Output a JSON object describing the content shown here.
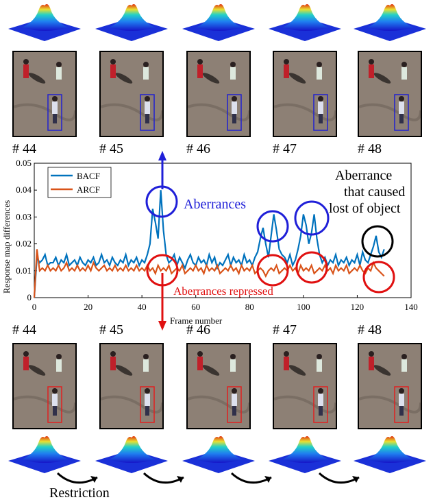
{
  "frames_top": [
    {
      "label": "# 44"
    },
    {
      "label": "# 45"
    },
    {
      "label": "# 46"
    },
    {
      "label": "# 47"
    },
    {
      "label": "# 48"
    }
  ],
  "frames_bottom": [
    {
      "label": "# 44"
    },
    {
      "label": "# 45"
    },
    {
      "label": "# 46"
    },
    {
      "label": "# 47"
    },
    {
      "label": "# 48"
    }
  ],
  "annotations": {
    "aberrances": "Aberrances",
    "aberrances_repressed": "Aberrances repressed",
    "aberrance_lost_1": "Aberrance",
    "aberrance_lost_2": "that caused",
    "aberrance_lost_3": "lost of object",
    "restriction": "Restriction"
  },
  "colors": {
    "bacf": "#0072bd",
    "arcf": "#d95319",
    "blue_annot": "#1f1fd8",
    "red_annot": "#e01010",
    "box_top": "#2020d0",
    "box_bottom": "#e02020"
  },
  "chart_data": {
    "type": "line",
    "title": "",
    "xlabel": "Frame number",
    "ylabel": "Response map differences",
    "xlim": [
      0,
      140
    ],
    "ylim": [
      0,
      0.05
    ],
    "xticks": [
      0,
      20,
      40,
      60,
      80,
      100,
      120,
      140
    ],
    "yticks": [
      0,
      0.01,
      0.02,
      0.03,
      0.04,
      0.05
    ],
    "legend": "top-left",
    "series": [
      {
        "name": "BACF",
        "x": [
          0,
          1,
          2,
          3,
          4,
          5,
          6,
          7,
          8,
          9,
          10,
          11,
          12,
          13,
          14,
          15,
          16,
          17,
          18,
          19,
          20,
          21,
          22,
          23,
          24,
          25,
          26,
          27,
          28,
          29,
          30,
          31,
          32,
          33,
          34,
          35,
          36,
          37,
          38,
          39,
          40,
          41,
          42,
          43,
          44,
          45,
          46,
          47,
          48,
          49,
          50,
          51,
          52,
          53,
          54,
          55,
          56,
          57,
          58,
          59,
          60,
          61,
          62,
          63,
          64,
          65,
          66,
          67,
          68,
          69,
          70,
          71,
          72,
          73,
          74,
          75,
          76,
          77,
          78,
          79,
          80,
          81,
          82,
          83,
          84,
          85,
          86,
          87,
          88,
          89,
          90,
          91,
          92,
          93,
          94,
          95,
          96,
          97,
          98,
          99,
          100,
          101,
          102,
          103,
          104,
          105,
          106,
          107,
          108,
          109,
          110,
          111,
          112,
          113,
          114,
          115,
          116,
          117,
          118,
          119,
          120,
          121,
          122,
          123,
          124,
          125,
          126,
          127,
          128,
          129,
          130
        ],
        "y": [
          0,
          0.015,
          0.013,
          0.014,
          0.016,
          0.012,
          0.013,
          0.013,
          0.015,
          0.012,
          0.014,
          0.013,
          0.016,
          0.012,
          0.013,
          0.014,
          0.012,
          0.015,
          0.013,
          0.012,
          0.014,
          0.013,
          0.015,
          0.012,
          0.013,
          0.016,
          0.013,
          0.014,
          0.012,
          0.015,
          0.013,
          0.012,
          0.014,
          0.013,
          0.016,
          0.012,
          0.014,
          0.013,
          0.015,
          0.012,
          0.014,
          0.013,
          0.016,
          0.02,
          0.033,
          0.028,
          0.022,
          0.04,
          0.025,
          0.016,
          0.013,
          0.014,
          0.016,
          0.012,
          0.015,
          0.013,
          0.011,
          0.014,
          0.016,
          0.013,
          0.012,
          0.015,
          0.013,
          0.014,
          0.012,
          0.016,
          0.013,
          0.015,
          0.011,
          0.013,
          0.012,
          0.014,
          0.016,
          0.012,
          0.015,
          0.013,
          0.014,
          0.012,
          0.016,
          0.013,
          0.014,
          0.012,
          0.015,
          0.017,
          0.022,
          0.026,
          0.02,
          0.015,
          0.023,
          0.031,
          0.025,
          0.018,
          0.016,
          0.015,
          0.013,
          0.016,
          0.012,
          0.014,
          0.018,
          0.023,
          0.031,
          0.027,
          0.02,
          0.024,
          0.031,
          0.022,
          0.016,
          0.013,
          0.015,
          0.012,
          0.014,
          0.013,
          0.016,
          0.012,
          0.014,
          0.013,
          0.015,
          0.012,
          0.014,
          0.013,
          0.016,
          0.012,
          0.017,
          0.014,
          0.013,
          0.016,
          0.019,
          0.023,
          0.017,
          0.015,
          0.018
        ]
      },
      {
        "name": "ARCF",
        "x": [
          0,
          1,
          2,
          3,
          4,
          5,
          6,
          7,
          8,
          9,
          10,
          11,
          12,
          13,
          14,
          15,
          16,
          17,
          18,
          19,
          20,
          21,
          22,
          23,
          24,
          25,
          26,
          27,
          28,
          29,
          30,
          31,
          32,
          33,
          34,
          35,
          36,
          37,
          38,
          39,
          40,
          41,
          42,
          43,
          44,
          45,
          46,
          47,
          48,
          49,
          50,
          51,
          52,
          53,
          54,
          55,
          56,
          57,
          58,
          59,
          60,
          61,
          62,
          63,
          64,
          65,
          66,
          67,
          68,
          69,
          70,
          71,
          72,
          73,
          74,
          75,
          76,
          77,
          78,
          79,
          80,
          81,
          82,
          83,
          84,
          85,
          86,
          87,
          88,
          89,
          90,
          91,
          92,
          93,
          94,
          95,
          96,
          97,
          98,
          99,
          100,
          101,
          102,
          103,
          104,
          105,
          106,
          107,
          108,
          109,
          110,
          111,
          112,
          113,
          114,
          115,
          116,
          117,
          118,
          119,
          120,
          121,
          122,
          123,
          124,
          125,
          126,
          127,
          128,
          129,
          130
        ],
        "y": [
          0,
          0.018,
          0.01,
          0.011,
          0.01,
          0.012,
          0.01,
          0.011,
          0.01,
          0.012,
          0.01,
          0.011,
          0.013,
          0.01,
          0.011,
          0.01,
          0.012,
          0.01,
          0.011,
          0.01,
          0.012,
          0.01,
          0.013,
          0.011,
          0.01,
          0.011,
          0.012,
          0.01,
          0.011,
          0.01,
          0.012,
          0.01,
          0.011,
          0.01,
          0.012,
          0.01,
          0.011,
          0.01,
          0.012,
          0.01,
          0.011,
          0.01,
          0.012,
          0.01,
          0.011,
          0.009,
          0.012,
          0.01,
          0.011,
          0.01,
          0.012,
          0.009,
          0.01,
          0.011,
          0.01,
          0.012,
          0.009,
          0.01,
          0.011,
          0.01,
          0.012,
          0.01,
          0.011,
          0.009,
          0.012,
          0.01,
          0.011,
          0.01,
          0.012,
          0.009,
          0.01,
          0.011,
          0.01,
          0.012,
          0.01,
          0.011,
          0.009,
          0.012,
          0.01,
          0.011,
          0.01,
          0.012,
          0.009,
          0.01,
          0.011,
          0.01,
          0.008,
          0.01,
          0.011,
          0.01,
          0.012,
          0.009,
          0.01,
          0.011,
          0.01,
          0.012,
          0.01,
          0.011,
          0.009,
          0.012,
          0.01,
          0.011,
          0.01,
          0.012,
          0.009,
          0.01,
          0.011,
          0.01,
          0.012,
          0.01,
          0.011,
          0.009,
          0.012,
          0.01,
          0.011,
          0.01,
          0.012,
          0.009,
          0.01,
          0.011,
          0.01,
          0.012,
          0.01,
          0.009,
          0.011,
          0.01,
          0.013,
          0.011,
          0.01,
          0.009,
          0.008
        ]
      }
    ]
  }
}
